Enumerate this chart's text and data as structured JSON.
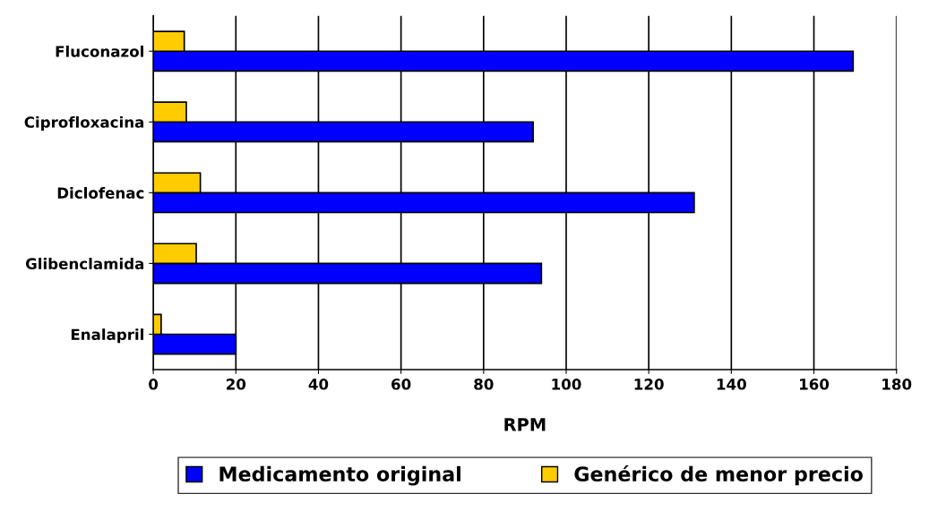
{
  "chart_data": {
    "type": "bar",
    "orientation": "horizontal",
    "xlabel": "RPM",
    "categories": [
      "Fluconazol",
      "Ciprofloxacina",
      "Diclofenac",
      "Glibenclamida",
      "Enalapril"
    ],
    "series": [
      {
        "name": "Medicamento original",
        "color": "#0000ff",
        "values": [
          169.5,
          92,
          131,
          94,
          20
        ]
      },
      {
        "name": "Genérico de menor precio",
        "color": "#ffcc00",
        "values": [
          7.5,
          8,
          11.4,
          10.4,
          1.9
        ]
      }
    ],
    "xlim": [
      0,
      180
    ],
    "xticks": [
      0,
      20,
      40,
      60,
      80,
      100,
      120,
      140,
      160,
      180
    ],
    "grid": "x",
    "legend": "bottom"
  }
}
